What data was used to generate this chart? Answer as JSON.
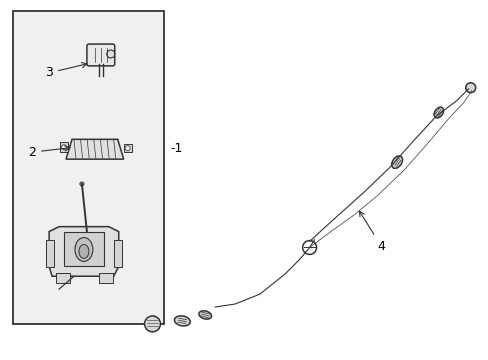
{
  "background_color": "#ffffff",
  "box_color": "#f0f0f0",
  "line_color": "#333333",
  "label_color": "#000000",
  "label_1": "-1",
  "label_2": "2",
  "label_3": "3",
  "label_4": "4"
}
